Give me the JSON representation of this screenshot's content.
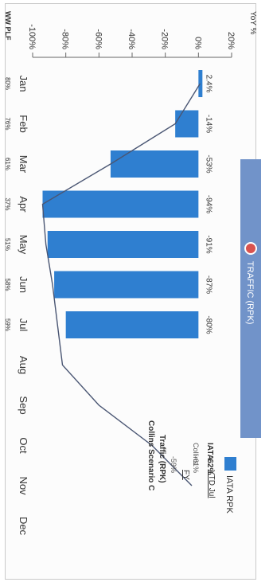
{
  "header": {
    "label": "TRAFFIC (RPK)",
    "dot_color": "#d9534f",
    "bar_color": "#7193c9"
  },
  "legend": {
    "label": "IATA RPK",
    "swatch_color": "#2f7fd0"
  },
  "ytd_table": {
    "col_ytd": "YTD Jul",
    "col_fy": "FY",
    "rows": [
      {
        "label": "IATA",
        "ytd": "-62%",
        "fy": ""
      },
      {
        "label": "Collins",
        "ytd": "-61%",
        "fy": "-59%"
      }
    ]
  },
  "chart_data": {
    "type": "bar",
    "title": "",
    "ylabel": "YoY %",
    "xlabel": "",
    "ylim": [
      -100,
      20
    ],
    "yticks": [
      "20%",
      "0%",
      "-20%",
      "-40%",
      "-60%",
      "-80%",
      "-100%"
    ],
    "categories": [
      "Jan",
      "Feb",
      "Mar",
      "Apr",
      "May",
      "Jun",
      "Jul",
      "Aug",
      "Sep",
      "Oct",
      "Nov",
      "Dec"
    ],
    "bar_color": "#2f7fd0",
    "series": [
      {
        "name": "IATA RPK",
        "values": [
          2.4,
          -14,
          -53,
          -94,
          -91,
          -87,
          -80,
          null,
          null,
          null,
          null,
          null
        ],
        "labels": [
          "2.4%",
          "-14%",
          "-53%",
          "-94%",
          "-91%",
          "-87%",
          "-80%",
          "",
          "",
          "",
          "",
          ""
        ]
      },
      {
        "name": "Traffic (RPK) Collins Scenario C",
        "values": [
          1,
          -14,
          -53,
          -94,
          -92,
          -88,
          -85,
          -82,
          -60,
          -28,
          -4,
          null
        ],
        "annotation": [
          "Traffic (RPK)",
          "Collins Scenario C"
        ]
      }
    ],
    "ww_plf": {
      "label": "WW PLF",
      "values": [
        "80%",
        "76%",
        "61%",
        "37%",
        "51%",
        "58%",
        "59%"
      ]
    }
  }
}
